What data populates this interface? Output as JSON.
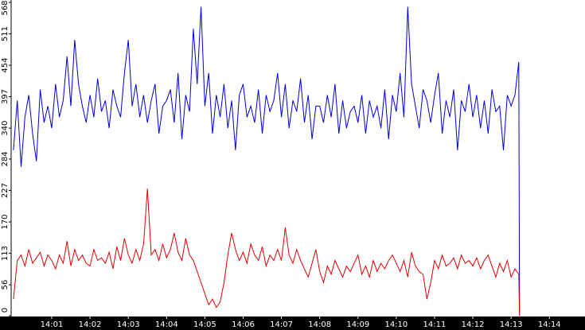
{
  "chart_data": {
    "type": "line",
    "x": [
      0,
      0.1,
      0.2,
      0.3,
      0.4,
      0.5,
      0.6,
      0.7,
      0.8,
      0.9,
      1,
      1.1,
      1.2,
      1.3,
      1.4,
      1.5,
      1.6,
      1.7,
      1.8,
      1.9,
      2,
      2.1,
      2.2,
      2.3,
      2.4,
      2.5,
      2.6,
      2.7,
      2.8,
      2.9,
      3,
      3.1,
      3.2,
      3.3,
      3.4,
      3.5,
      3.6,
      3.7,
      3.8,
      3.9,
      4,
      4.1,
      4.2,
      4.3,
      4.4,
      4.5,
      4.6,
      4.7,
      4.8,
      4.9,
      5,
      5.1,
      5.2,
      5.3,
      5.4,
      5.5,
      5.6,
      5.7,
      5.8,
      5.9,
      6,
      6.1,
      6.2,
      6.3,
      6.4,
      6.5,
      6.6,
      6.7,
      6.8,
      6.9,
      7,
      7.1,
      7.2,
      7.3,
      7.4,
      7.5,
      7.6,
      7.7,
      7.8,
      7.9,
      8,
      8.1,
      8.2,
      8.3,
      8.4,
      8.5,
      8.6,
      8.7,
      8.8,
      8.9,
      9,
      9.1,
      9.2,
      9.3,
      9.4,
      9.5,
      9.6,
      9.7,
      9.8,
      9.9,
      10,
      10.1,
      10.2,
      10.3,
      10.4,
      10.5,
      10.6,
      10.7,
      10.8,
      10.9,
      11,
      11.1,
      11.2,
      11.3,
      11.4,
      11.5,
      11.6,
      11.7,
      11.8,
      11.9,
      12,
      12.1,
      12.2,
      12.3,
      12.4,
      12.5,
      12.6,
      12.7,
      12.8,
      12.9,
      13,
      13.1,
      13.2,
      13.22
    ],
    "series": [
      {
        "color": "#0000e0",
        "values": [
          300,
          390,
          270,
          360,
          400,
          330,
          280,
          410,
          350,
          380,
          340,
          420,
          360,
          390,
          470,
          380,
          500,
          420,
          380,
          350,
          400,
          360,
          430,
          370,
          390,
          340,
          410,
          380,
          360,
          440,
          500,
          380,
          420,
          360,
          400,
          350,
          390,
          420,
          330,
          380,
          390,
          410,
          350,
          440,
          320,
          400,
          370,
          520,
          420,
          560,
          380,
          440,
          330,
          400,
          360,
          420,
          340,
          390,
          300,
          400,
          420,
          360,
          380,
          350,
          410,
          330,
          400,
          370,
          390,
          440,
          360,
          420,
          340,
          390,
          370,
          430,
          350,
          400,
          320,
          380,
          380,
          350,
          400,
          360,
          420,
          330,
          390,
          340,
          370,
          380,
          350,
          400,
          330,
          390,
          360,
          380,
          340,
          410,
          320,
          400,
          370,
          440,
          360,
          560,
          420,
          380,
          340,
          410,
          390,
          350,
          400,
          440,
          330,
          390,
          360,
          410,
          300,
          390,
          370,
          420,
          360,
          400,
          340,
          390,
          330,
          410,
          370,
          380,
          300,
          400,
          380,
          400,
          460,
          0
        ]
      },
      {
        "color": "#e00000",
        "values": [
          30,
          100,
          110,
          90,
          120,
          95,
          105,
          115,
          90,
          110,
          100,
          85,
          110,
          95,
          135,
          90,
          120,
          100,
          110,
          95,
          90,
          120,
          100,
          105,
          95,
          115,
          85,
          125,
          100,
          140,
          110,
          95,
          120,
          100,
          130,
          230,
          110,
          120,
          100,
          130,
          105,
          120,
          150,
          115,
          100,
          140,
          110,
          100,
          80,
          60,
          40,
          20,
          30,
          15,
          25,
          60,
          110,
          150,
          120,
          100,
          115,
          95,
          130,
          110,
          100,
          125,
          90,
          110,
          100,
          120,
          100,
          160,
          110,
          95,
          120,
          100,
          85,
          70,
          95,
          120,
          80,
          60,
          90,
          75,
          100,
          85,
          70,
          90,
          80,
          95,
          110,
          75,
          90,
          70,
          100,
          80,
          95,
          85,
          100,
          110,
          95,
          80,
          100,
          70,
          115,
          90,
          80,
          75,
          30,
          60,
          100,
          85,
          110,
          90,
          95,
          105,
          85,
          110,
          95,
          100,
          90,
          105,
          85,
          100,
          110,
          90,
          70,
          95,
          80,
          100,
          70,
          85,
          75,
          0
        ]
      }
    ],
    "xlim": [
      -0.06,
      14.93
    ],
    "ylim": [
      0,
      568
    ],
    "xticks": [
      {
        "value": 1,
        "label": "14:01"
      },
      {
        "value": 2,
        "label": "14:02"
      },
      {
        "value": 3,
        "label": "14:03"
      },
      {
        "value": 4,
        "label": "14:04"
      },
      {
        "value": 5,
        "label": "14:05"
      },
      {
        "value": 6,
        "label": "14:06"
      },
      {
        "value": 7,
        "label": "14:07"
      },
      {
        "value": 8,
        "label": "14:08"
      },
      {
        "value": 9,
        "label": "14:09"
      },
      {
        "value": 10,
        "label": "14:10"
      },
      {
        "value": 11,
        "label": "14:11"
      },
      {
        "value": 12,
        "label": "14:12"
      },
      {
        "value": 13,
        "label": "14:13"
      },
      {
        "value": 14,
        "label": "14:14"
      }
    ],
    "yticks": [
      0,
      56,
      113,
      170,
      227,
      284,
      340,
      397,
      454,
      511,
      568
    ]
  }
}
